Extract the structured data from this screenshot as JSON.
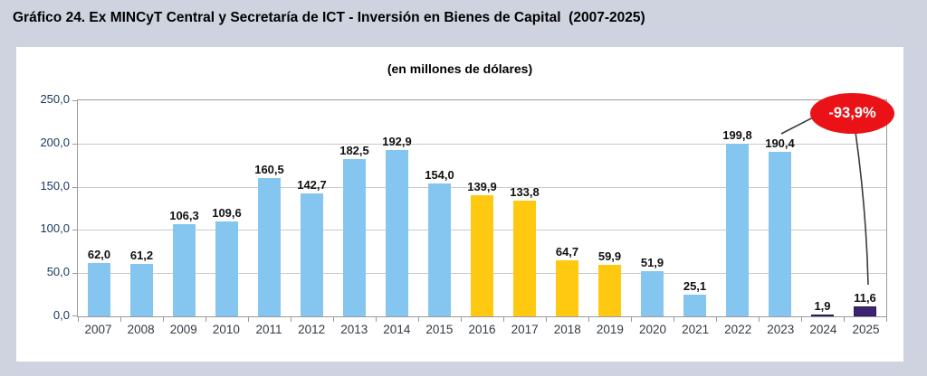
{
  "page": {
    "title": "Gráfico 24. Ex MINCyT Central y Secretaría de ICT - Inversión en Bienes de Capital  (2007-2025)",
    "background_color": "#CED3DF",
    "panel_color": "#FFFFFF"
  },
  "chart_data": {
    "type": "bar",
    "title": "(en millones de dólares)",
    "categories": [
      "2007",
      "2008",
      "2009",
      "2010",
      "2011",
      "2012",
      "2013",
      "2014",
      "2015",
      "2016",
      "2017",
      "2018",
      "2019",
      "2020",
      "2021",
      "2022",
      "2023",
      "2024",
      "2025"
    ],
    "values": [
      62.0,
      61.2,
      106.3,
      109.6,
      160.5,
      142.7,
      182.5,
      192.9,
      154.0,
      139.9,
      133.8,
      64.7,
      59.9,
      51.9,
      25.1,
      199.8,
      190.4,
      1.9,
      11.6
    ],
    "value_labels": [
      "62,0",
      "61,2",
      "106,3",
      "109,6",
      "160,5",
      "142,7",
      "182,5",
      "192,9",
      "154,0",
      "139,9",
      "133,8",
      "64,7",
      "59,9",
      "51,9",
      "25,1",
      "199,8",
      "190,4",
      "1,9",
      "11,6"
    ],
    "bar_color_keys": [
      "blue",
      "blue",
      "blue",
      "blue",
      "blue",
      "blue",
      "blue",
      "blue",
      "blue",
      "yellow",
      "yellow",
      "yellow",
      "yellow",
      "blue",
      "blue",
      "blue",
      "blue",
      "purple",
      "purple"
    ],
    "colors": {
      "blue": "#85C6F0",
      "yellow": "#FFC912",
      "purple": "#3C2470",
      "purple_border": "#2B1A54"
    },
    "xlabel": "",
    "ylabel": "",
    "ylim": [
      0,
      250
    ],
    "yticks": [
      0,
      50,
      100,
      150,
      200,
      250
    ],
    "ytick_labels": [
      "0,0",
      "50,0",
      "100,0",
      "150,0",
      "200,0",
      "250,0"
    ],
    "grid": true,
    "legend": "none",
    "annotation": {
      "label": "-93,9%",
      "fill_color": "#EA1217",
      "text_color": "#FFFFFF",
      "points_from": "2023",
      "points_to": "2025"
    }
  }
}
